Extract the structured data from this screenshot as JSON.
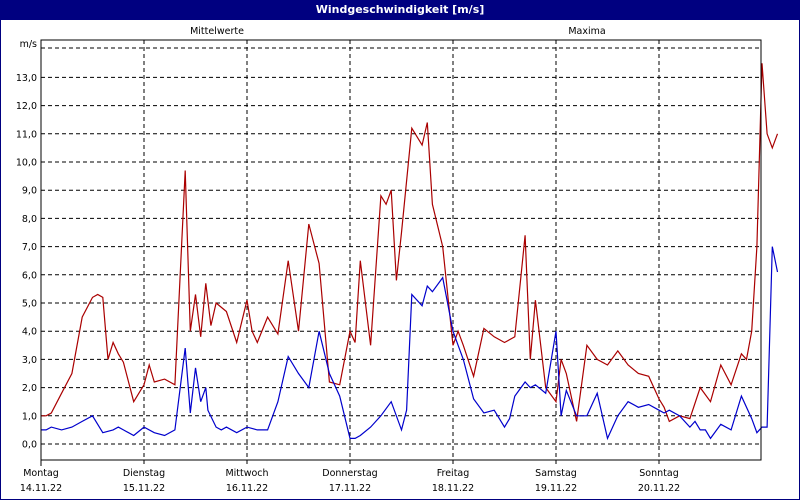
{
  "window": {
    "title": "Windgeschwindigkeit [m/s]"
  },
  "legend": {
    "series1": "Mittelwerte",
    "series2": "Maxima"
  },
  "colors": {
    "mittel": "#0000cc",
    "maxima": "#aa0000",
    "frame": "#000080"
  },
  "chart_data": {
    "type": "line",
    "title": "Windgeschwindigkeit [m/s]",
    "xlabel": "",
    "ylabel": "m/s",
    "ylim": [
      -0.6,
      14.0
    ],
    "yticks": [
      "0,0",
      "1,0",
      "2,0",
      "3,0",
      "4,0",
      "5,0",
      "6,0",
      "7,0",
      "8,0",
      "9,0",
      "10,0",
      "11,0",
      "12,0",
      "13,0"
    ],
    "categories": [
      {
        "day": "Montag",
        "date": "14.11.22"
      },
      {
        "day": "Dienstag",
        "date": "15.11.22"
      },
      {
        "day": "Mittwoch",
        "date": "16.11.22"
      },
      {
        "day": "Donnerstag",
        "date": "17.11.22"
      },
      {
        "day": "Freitag",
        "date": "18.11.22"
      },
      {
        "day": "Samstag",
        "date": "19.11.22"
      },
      {
        "day": "Sonntag",
        "date": "20.11.22"
      }
    ],
    "grid": true,
    "x_unit": "days from 14.11.22 00:00",
    "series": [
      {
        "name": "Mittelwerte",
        "color": "#0000cc",
        "x": [
          0,
          0.05,
          0.1,
          0.2,
          0.3,
          0.4,
          0.5,
          0.6,
          0.7,
          0.75,
          0.8,
          0.9,
          1.0,
          1.1,
          1.2,
          1.3,
          1.4,
          1.45,
          1.5,
          1.55,
          1.6,
          1.62,
          1.7,
          1.75,
          1.8,
          1.9,
          2.0,
          2.1,
          2.2,
          2.3,
          2.4,
          2.5,
          2.6,
          2.7,
          2.8,
          2.9,
          3.0,
          3.05,
          3.1,
          3.2,
          3.3,
          3.4,
          3.5,
          3.55,
          3.6,
          3.7,
          3.75,
          3.8,
          3.9,
          4.0,
          4.05,
          4.1,
          4.2,
          4.3,
          4.4,
          4.5,
          4.55,
          4.6,
          4.7,
          4.75,
          4.8,
          4.9,
          5.0,
          5.05,
          5.1,
          5.2,
          5.3,
          5.4,
          5.5,
          5.6,
          5.7,
          5.8,
          5.9,
          6.0,
          6.05,
          6.1,
          6.2,
          6.3,
          6.35,
          6.4,
          6.45,
          6.5,
          6.6,
          6.7,
          6.8,
          6.9,
          6.95,
          7.0,
          7.05,
          7.1,
          7.15
        ],
        "values": [
          0.5,
          0.5,
          0.6,
          0.5,
          0.6,
          0.8,
          1.0,
          0.4,
          0.5,
          0.6,
          0.5,
          0.3,
          0.6,
          0.4,
          0.3,
          0.5,
          3.4,
          1.1,
          2.7,
          1.5,
          2.0,
          1.2,
          0.6,
          0.5,
          0.6,
          0.4,
          0.6,
          0.5,
          0.5,
          1.5,
          3.1,
          2.5,
          2.0,
          4.0,
          2.5,
          1.7,
          0.2,
          0.2,
          0.3,
          0.6,
          1.0,
          1.5,
          0.5,
          1.2,
          5.3,
          4.9,
          5.6,
          5.4,
          5.9,
          4.0,
          3.5,
          3.0,
          1.6,
          1.1,
          1.2,
          0.6,
          0.9,
          1.7,
          2.2,
          2.0,
          2.1,
          1.8,
          4.0,
          1.0,
          1.9,
          1.0,
          1.0,
          1.8,
          0.2,
          1.0,
          1.5,
          1.3,
          1.4,
          1.2,
          1.1,
          1.2,
          1.0,
          0.6,
          0.8,
          0.5,
          0.5,
          0.2,
          0.7,
          0.5,
          1.7,
          0.9,
          0.4,
          0.6,
          0.6,
          7.0,
          6.1
        ]
      },
      {
        "name": "Maxima",
        "color": "#aa0000",
        "x": [
          0,
          0.05,
          0.1,
          0.2,
          0.3,
          0.4,
          0.5,
          0.55,
          0.6,
          0.65,
          0.7,
          0.75,
          0.8,
          0.9,
          1.0,
          1.05,
          1.1,
          1.2,
          1.3,
          1.4,
          1.45,
          1.5,
          1.55,
          1.6,
          1.65,
          1.7,
          1.8,
          1.9,
          2.0,
          2.05,
          2.1,
          2.2,
          2.3,
          2.4,
          2.5,
          2.6,
          2.7,
          2.8,
          2.9,
          3.0,
          3.05,
          3.1,
          3.2,
          3.3,
          3.35,
          3.4,
          3.45,
          3.5,
          3.6,
          3.7,
          3.75,
          3.8,
          3.9,
          4.0,
          4.05,
          4.1,
          4.2,
          4.3,
          4.4,
          4.5,
          4.6,
          4.7,
          4.75,
          4.8,
          4.9,
          5.0,
          5.05,
          5.1,
          5.2,
          5.3,
          5.4,
          5.5,
          5.6,
          5.7,
          5.8,
          5.9,
          6.0,
          6.05,
          6.1,
          6.2,
          6.3,
          6.4,
          6.5,
          6.6,
          6.7,
          6.8,
          6.85,
          6.9,
          6.95,
          7.0,
          7.05,
          7.1,
          7.15
        ],
        "values": [
          1.0,
          1.0,
          1.1,
          1.8,
          2.5,
          4.5,
          5.2,
          5.3,
          5.2,
          3.0,
          3.6,
          3.2,
          2.9,
          1.5,
          2.1,
          2.8,
          2.2,
          2.3,
          2.1,
          9.7,
          4.0,
          5.3,
          3.8,
          5.7,
          4.2,
          5.0,
          4.7,
          3.6,
          5.1,
          4.0,
          3.6,
          4.5,
          3.9,
          6.5,
          4.0,
          7.8,
          6.4,
          2.2,
          2.1,
          4.0,
          3.6,
          6.5,
          3.5,
          8.8,
          8.5,
          9.0,
          5.8,
          7.5,
          11.2,
          10.6,
          11.4,
          8.5,
          7.0,
          3.5,
          4.0,
          3.5,
          2.4,
          4.1,
          3.8,
          3.6,
          3.8,
          7.4,
          3.0,
          5.1,
          2.0,
          1.5,
          3.0,
          2.5,
          0.8,
          3.5,
          3.0,
          2.8,
          3.3,
          2.8,
          2.5,
          2.4,
          1.6,
          1.3,
          0.8,
          1.0,
          0.9,
          2.0,
          1.5,
          2.8,
          2.1,
          3.2,
          3.0,
          4.0,
          7.0,
          13.5,
          11.0,
          10.5,
          11.0
        ]
      }
    ]
  }
}
